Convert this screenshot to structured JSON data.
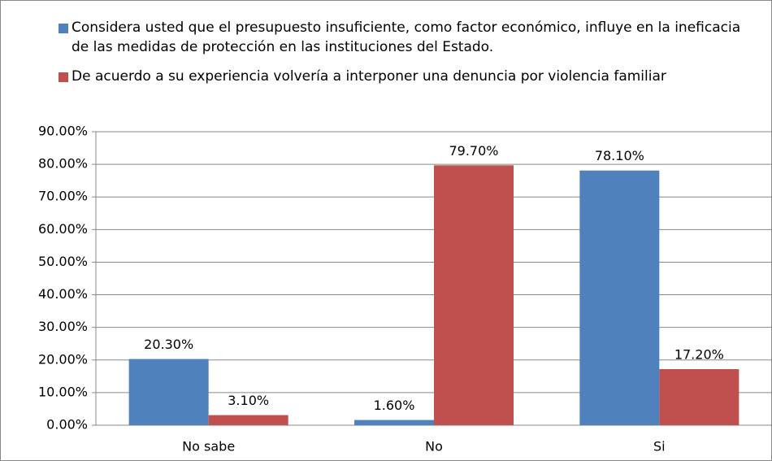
{
  "chart_data": {
    "type": "bar",
    "categories": [
      "No sabe",
      "No",
      "Si"
    ],
    "series": [
      {
        "name": "Considera usted que el presupuesto insuficiente, como factor económico, influye en la ineficacia de las medidas de protección en las instituciones del Estado.",
        "color": "#4f81bd",
        "values": [
          20.3,
          1.6,
          78.1
        ],
        "value_labels": [
          "20.30%",
          "1.60%",
          "78.10%"
        ]
      },
      {
        "name": "De acuerdo a su experiencia volvería a interponer una denuncia por violencia familiar",
        "color": "#c0504d",
        "values": [
          3.1,
          79.7,
          17.2
        ],
        "value_labels": [
          "3.10%",
          "79.70%",
          "17.20%"
        ]
      }
    ],
    "ylim": [
      0,
      90
    ],
    "yticks": [
      {
        "value": 0,
        "label": "0.00%"
      },
      {
        "value": 10,
        "label": "10.00%"
      },
      {
        "value": 20,
        "label": "20.00%"
      },
      {
        "value": 30,
        "label": "30.00%"
      },
      {
        "value": 40,
        "label": "40.00%"
      },
      {
        "value": 50,
        "label": "50.00%"
      },
      {
        "value": 60,
        "label": "60.00%"
      },
      {
        "value": 70,
        "label": "70.00%"
      },
      {
        "value": 80,
        "label": "80.00%"
      },
      {
        "value": 90,
        "label": "90.00%"
      }
    ],
    "grid": true,
    "legend": "top"
  }
}
